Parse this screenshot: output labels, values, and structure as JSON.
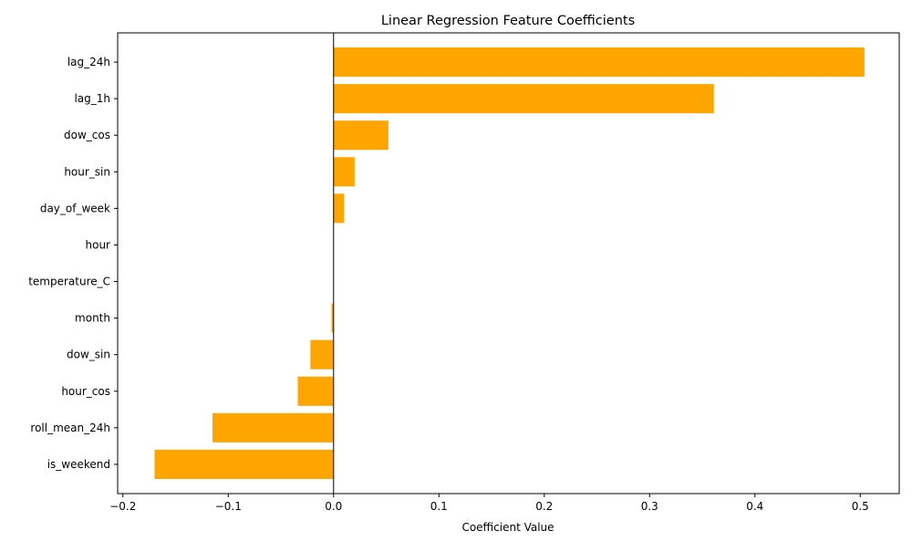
{
  "chart_data": {
    "type": "bar",
    "orientation": "horizontal",
    "title": "Linear Regression Feature Coefficients",
    "xlabel": "Coefficient Value",
    "ylabel": "",
    "xlim": [
      -0.205,
      0.537
    ],
    "xticks": [
      -0.2,
      -0.1,
      0.0,
      0.1,
      0.2,
      0.3,
      0.4,
      0.5
    ],
    "xtick_labels": [
      "−0.2",
      "−0.1",
      "0.0",
      "0.1",
      "0.2",
      "0.3",
      "0.4",
      "0.5"
    ],
    "categories": [
      "lag_24h",
      "lag_1h",
      "dow_cos",
      "hour_sin",
      "day_of_week",
      "hour",
      "temperature_C",
      "month",
      "dow_sin",
      "hour_cos",
      "roll_mean_24h",
      "is_weekend"
    ],
    "values": [
      0.504,
      0.361,
      0.052,
      0.02,
      0.01,
      0.0,
      0.0,
      -0.002,
      -0.022,
      -0.034,
      -0.115,
      -0.17
    ],
    "bar_color": "#ffa500",
    "zero_line": true,
    "grid": false,
    "legend": "none"
  }
}
